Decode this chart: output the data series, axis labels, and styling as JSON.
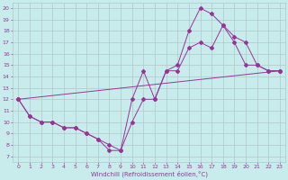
{
  "xlabel": "Windchill (Refroidissement éolien,°C)",
  "background_color": "#c8ecec",
  "grid_color": "#b0c8c8",
  "line_color": "#993399",
  "xlim": [
    -0.5,
    23.5
  ],
  "ylim": [
    6.5,
    20.5
  ],
  "xticks": [
    0,
    1,
    2,
    3,
    4,
    5,
    6,
    7,
    8,
    9,
    10,
    11,
    12,
    13,
    14,
    15,
    16,
    17,
    18,
    19,
    20,
    21,
    22,
    23
  ],
  "yticks": [
    7,
    8,
    9,
    10,
    11,
    12,
    13,
    14,
    15,
    16,
    17,
    18,
    19,
    20
  ],
  "line1_x": [
    0,
    1,
    2,
    3,
    4,
    5,
    6,
    7,
    8,
    9,
    10,
    11,
    12,
    13,
    14,
    15,
    16,
    17,
    18,
    19,
    20,
    21,
    22,
    23
  ],
  "line1_y": [
    12,
    10.5,
    10,
    10,
    9.5,
    9.5,
    9,
    8.5,
    7.5,
    7.5,
    10,
    12,
    12,
    14.5,
    14.5,
    16.5,
    17,
    16.5,
    18.5,
    17,
    15,
    15,
    14.5,
    14.5
  ],
  "line2_x": [
    0,
    1,
    2,
    3,
    4,
    5,
    6,
    7,
    8,
    9,
    10,
    11,
    12,
    13,
    14,
    15,
    16,
    17,
    18,
    19,
    20,
    21,
    22,
    23
  ],
  "line2_y": [
    12,
    10.5,
    10,
    10,
    9.5,
    9.5,
    9.0,
    8.5,
    8.0,
    7.5,
    12,
    14.5,
    12,
    14.5,
    15,
    18,
    20,
    19.5,
    18.5,
    17.5,
    17,
    15,
    14.5,
    14.5
  ],
  "line3_x": [
    0,
    23
  ],
  "line3_y": [
    12,
    14.5
  ]
}
